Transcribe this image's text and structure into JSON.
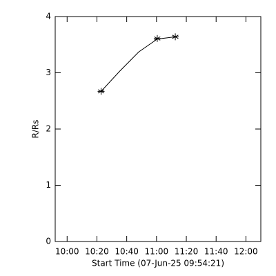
{
  "chart_data": {
    "type": "line",
    "ylabel": "R/Rs",
    "xlabel": "Start Time (07-Jun-25 09:54:21)",
    "x": [
      622.8,
      660.5,
      672.6
    ],
    "values": [
      2.67,
      3.61,
      3.64
    ],
    "marker": "asterisk",
    "color": "#000000",
    "fit": {
      "x": [
        622.8,
        635,
        648,
        660.5,
        672.6
      ],
      "values": [
        2.67,
        3.02,
        3.37,
        3.6,
        3.64
      ]
    },
    "xlim": [
      592,
      730
    ],
    "ylim": [
      0,
      4
    ],
    "xticks": [
      {
        "value": 600,
        "label": "10:00"
      },
      {
        "value": 620,
        "label": "10:20"
      },
      {
        "value": 640,
        "label": "10:40"
      },
      {
        "value": 660,
        "label": "11:00"
      },
      {
        "value": 680,
        "label": "11:20"
      },
      {
        "value": 700,
        "label": "11:40"
      },
      {
        "value": 720,
        "label": "12:00"
      }
    ],
    "yticks": [
      0,
      1,
      2,
      3,
      4
    ],
    "grid": false
  }
}
